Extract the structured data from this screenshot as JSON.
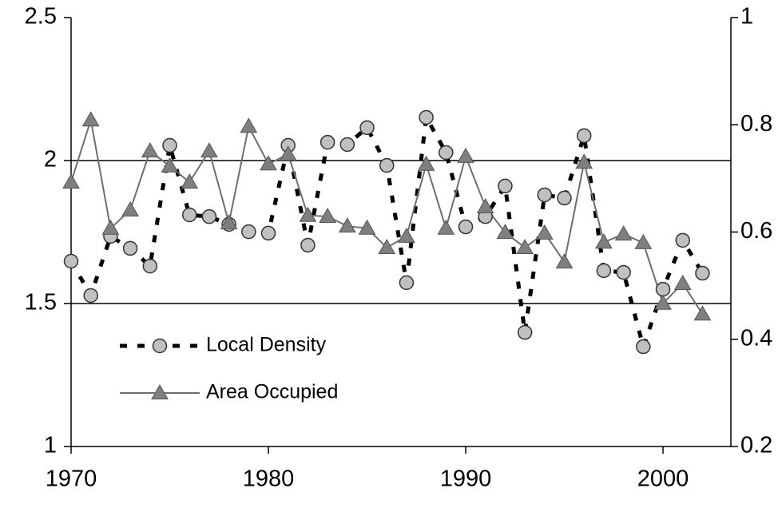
{
  "chart_data": {
    "type": "line",
    "x": [
      1970,
      1971,
      1972,
      1973,
      1974,
      1975,
      1976,
      1977,
      1978,
      1979,
      1980,
      1981,
      1982,
      1983,
      1984,
      1985,
      1986,
      1987,
      1988,
      1989,
      1990,
      1991,
      1992,
      1993,
      1994,
      1995,
      1996,
      1997,
      1998,
      1999,
      2000,
      2001,
      2002
    ],
    "xlim": [
      1970,
      2003.44
    ],
    "xticks": [
      1970,
      1980,
      1990,
      2000
    ],
    "ylim": [
      1,
      2.5
    ],
    "yticks": [
      1,
      1.5,
      2,
      2.5
    ],
    "y2lim": [
      0.2,
      1
    ],
    "y2ticks": [
      0.2,
      0.4,
      0.6,
      0.8,
      1
    ],
    "grid": true,
    "series": [
      {
        "name": "Local Density",
        "color": "#000000",
        "marker_color": "#c0c0c0",
        "marker": "circle",
        "line_style": "dashed",
        "values": [
          1.648,
          1.528,
          1.735,
          1.693,
          1.631,
          2.053,
          1.81,
          1.804,
          1.777,
          1.751,
          1.746,
          2.053,
          1.704,
          2.064,
          2.056,
          2.115,
          1.983,
          1.573,
          2.151,
          2.028,
          1.768,
          1.804,
          1.911,
          1.399,
          1.88,
          1.869,
          2.087,
          1.615,
          1.609,
          1.349,
          1.55,
          1.721,
          1.606
        ]
      },
      {
        "name": "Area Occupied",
        "color": "#6e6e6e",
        "marker_color": "#7f7f7f",
        "marker": "triangle",
        "line_style": "solid",
        "axis": "y2",
        "values": [
          0.693,
          0.809,
          0.607,
          0.641,
          0.751,
          0.723,
          0.693,
          0.751,
          0.617,
          0.797,
          0.727,
          0.745,
          0.631,
          0.629,
          0.611,
          0.607,
          0.571,
          0.592,
          0.726,
          0.607,
          0.741,
          0.647,
          0.599,
          0.571,
          0.598,
          0.544,
          0.73,
          0.581,
          0.596,
          0.58,
          0.467,
          0.504,
          0.447
        ]
      }
    ]
  }
}
